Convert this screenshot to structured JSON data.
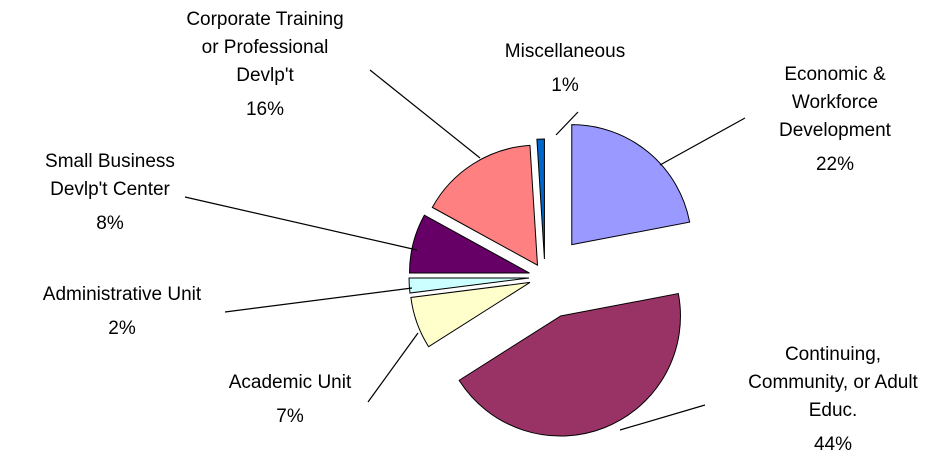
{
  "chart_data": {
    "type": "pie",
    "categories": [
      [
        "Economic &",
        "Workforce",
        "Development"
      ],
      [
        "Continuing,",
        "Community, or Adult",
        "Educ."
      ],
      [
        "Academic Unit"
      ],
      [
        "Administrative Unit"
      ],
      [
        "Small Business",
        "Devlp't Center"
      ],
      [
        "Corporate Training",
        "or Professional",
        "Devlp't"
      ],
      [
        "Miscellaneous"
      ]
    ],
    "values": [
      22,
      44,
      7,
      2,
      8,
      16,
      1
    ],
    "value_labels": [
      "22%",
      "44%",
      "7%",
      "2%",
      "8%",
      "16%",
      "1%"
    ],
    "colors": [
      "#9999ff",
      "#993366",
      "#ffffcc",
      "#ccffff",
      "#660066",
      "#ff8080",
      "#0066cc"
    ],
    "start_angle": 0,
    "direction": "clockwise"
  }
}
